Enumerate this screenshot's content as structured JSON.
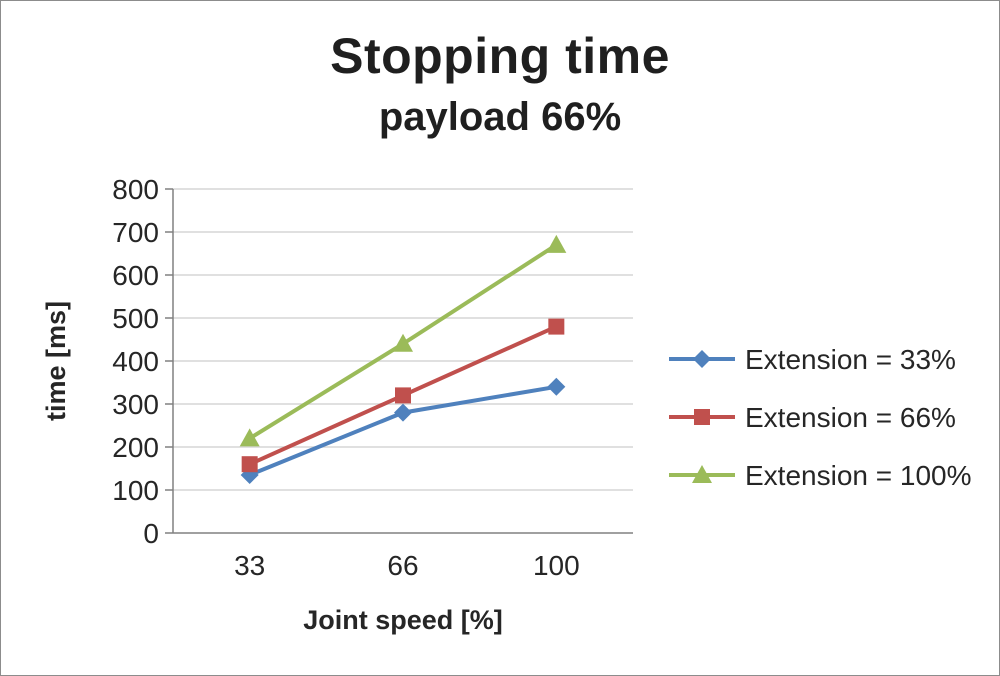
{
  "chart_data": {
    "type": "line",
    "title": "Stopping time",
    "subtitle": "payload 66%",
    "categories": [
      "33",
      "66",
      "100"
    ],
    "series": [
      {
        "name": "Extension = 33%",
        "marker": "diamond",
        "color": "#4F81BD",
        "values": [
          135,
          280,
          340
        ]
      },
      {
        "name": "Extension = 66%",
        "marker": "square",
        "color": "#C0504D",
        "values": [
          160,
          320,
          480
        ]
      },
      {
        "name": "Extension = 100%",
        "marker": "triangle",
        "color": "#9BBB59",
        "values": [
          220,
          440,
          670
        ]
      }
    ],
    "xlabel": "Joint speed [%]",
    "ylabel": "time [ms]",
    "ylim": [
      0,
      800
    ],
    "ytick_step": 100,
    "grid": true,
    "legend_position": "right",
    "text_color": "#262626",
    "gridline_color": "#D6D6D6",
    "axis_color": "#808080"
  }
}
